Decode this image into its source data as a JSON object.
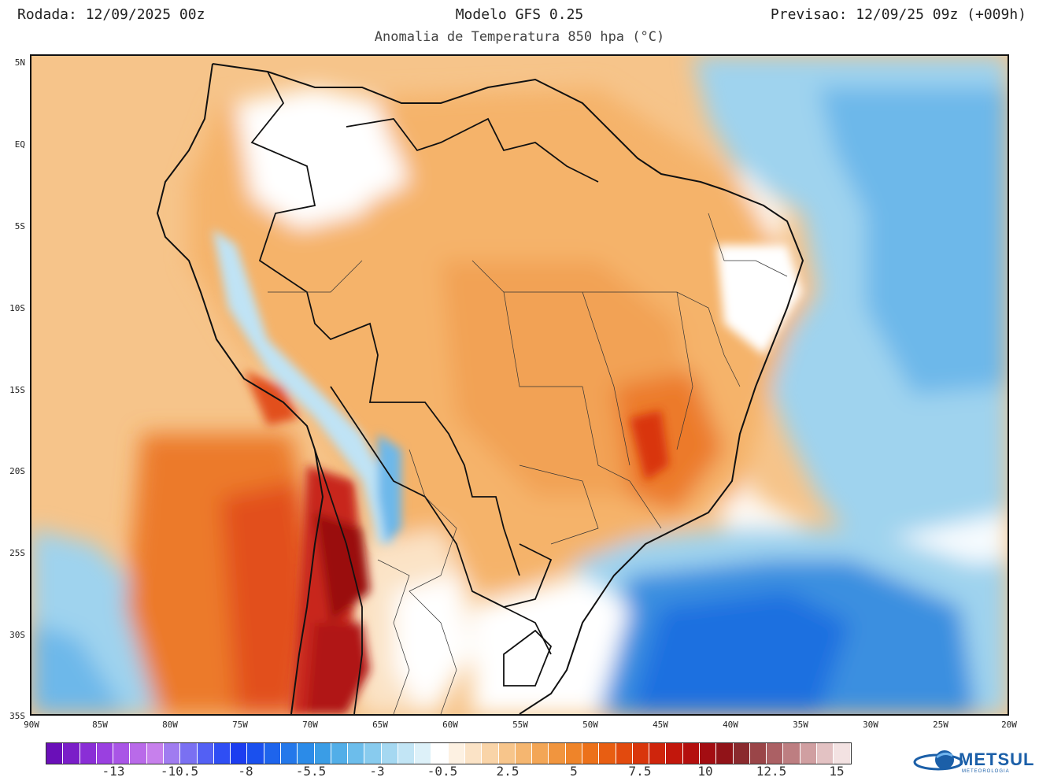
{
  "header": {
    "run": "Rodada: 12/09/2025 00z",
    "model": "Modelo GFS 0.25",
    "forecast": "Previsao: 12/09/25 09z (+009h)",
    "subtitle": "Anomalia de Temperatura 850 hpa (°C)"
  },
  "map": {
    "lat_labels": [
      "5N",
      "EQ",
      "5S",
      "10S",
      "15S",
      "20S",
      "25S",
      "30S",
      "35S"
    ],
    "lon_labels": [
      "90W",
      "85W",
      "80W",
      "75W",
      "70W",
      "65W",
      "60W",
      "55W",
      "50W",
      "45W",
      "40W",
      "35W",
      "30W",
      "25W",
      "20W"
    ],
    "colors": {
      "ocean_warm": "#f6c48a",
      "land_warm": "#f5b36b",
      "strong_warm": "#e8652a",
      "very_warm": "#c8281c",
      "cool": "#9fd3ee",
      "cold": "#3a8fe0",
      "neutral": "#ffffff",
      "border": "#111111"
    }
  },
  "colorbar": {
    "colors": [
      "#6a0fb8",
      "#7a1ec8",
      "#8a2ed6",
      "#9a40e0",
      "#a955e6",
      "#b96ae9",
      "#c780ec",
      "#a07cf0",
      "#7a70f2",
      "#5360f4",
      "#2f4ef4",
      "#1c3df0",
      "#1a50ee",
      "#1e64ec",
      "#2478ea",
      "#2b8be8",
      "#3a9de6",
      "#52aee8",
      "#6cbdeb",
      "#88cbee",
      "#a5d8f1",
      "#c2e5f5",
      "#ddf1f9",
      "#ffffff",
      "#fdf1e2",
      "#fbe3c6",
      "#f9d4a8",
      "#f7c58b",
      "#f5b670",
      "#f3a656",
      "#f1953e",
      "#ef8429",
      "#ec711a",
      "#e85e12",
      "#e24a0e",
      "#d9360c",
      "#cf250c",
      "#c2170c",
      "#b40f0e",
      "#a30d12",
      "#911318",
      "#8a2a2e",
      "#9a4548",
      "#ab6064",
      "#bd7e81",
      "#d09fa1",
      "#e3c2c3",
      "#f3e2e2"
    ],
    "labels": [
      "-13",
      "-10.5",
      "-8",
      "-5.5",
      "-3",
      "-0.5",
      "2.5",
      "5",
      "7.5",
      "10",
      "12.5",
      "15"
    ]
  },
  "logo": {
    "name": "METSUL",
    "tagline": "METEOROLOGIA"
  }
}
